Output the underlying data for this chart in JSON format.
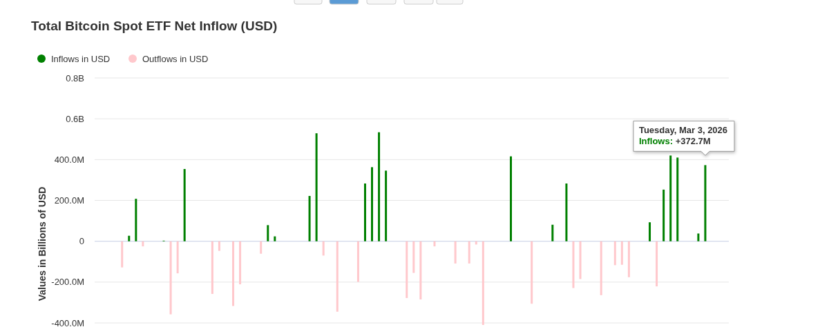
{
  "chart_data": {
    "type": "bar",
    "title": "Total Bitcoin Spot ETF Net Inflow (USD)",
    "ylabel": "Values in Billions of USD",
    "stacked": true,
    "categories": [
      null,
      null,
      null,
      null,
      null,
      null,
      null,
      null,
      null,
      null,
      null,
      null,
      null,
      null,
      null,
      null,
      null,
      null,
      null,
      null,
      null,
      null,
      null,
      null,
      null,
      null,
      null,
      null,
      null,
      null,
      null,
      null,
      null,
      null,
      null,
      null,
      null,
      null,
      null,
      null,
      null,
      null,
      null,
      null,
      null,
      null,
      null,
      null,
      null,
      null,
      null,
      null,
      null,
      null,
      null,
      null,
      null,
      null,
      null,
      null,
      null,
      null,
      null,
      null,
      null,
      null,
      null,
      null,
      null,
      null,
      null,
      null,
      null,
      null,
      null,
      null,
      null,
      null,
      null,
      null,
      null,
      null,
      null,
      null,
      null,
      null,
      null,
      null,
      null,
      null,
      null,
      null
    ],
    "series": [
      {
        "name": "Inflows in USD",
        "color": "#008000",
        "values": [
          null,
          null,
          null,
          null,
          null,
          27000000,
          208000000,
          null,
          null,
          null,
          3000000,
          null,
          null,
          354000000,
          null,
          null,
          null,
          null,
          null,
          null,
          null,
          null,
          null,
          null,
          null,
          79000000,
          24000000,
          null,
          null,
          null,
          null,
          222000000,
          529000000,
          null,
          null,
          null,
          null,
          null,
          null,
          283000000,
          363000000,
          534000000,
          346000000,
          null,
          null,
          null,
          null,
          null,
          null,
          null,
          null,
          null,
          null,
          null,
          null,
          null,
          null,
          null,
          null,
          null,
          416000000,
          null,
          null,
          null,
          null,
          null,
          81000000,
          null,
          283000000,
          null,
          null,
          null,
          null,
          null,
          null,
          null,
          null,
          null,
          null,
          null,
          93000000,
          null,
          253000000,
          420000000,
          410000000,
          null,
          null,
          38000000,
          373000000,
          null,
          null,
          null
        ]
      },
      {
        "name": "Outflows in USD",
        "color": "#ffc8cc",
        "values": [
          null,
          null,
          null,
          null,
          -128000000,
          null,
          null,
          -25000000,
          null,
          null,
          null,
          -358000000,
          -157000000,
          null,
          null,
          null,
          null,
          -258000000,
          -47000000,
          null,
          -317000000,
          -211000000,
          null,
          null,
          -61000000,
          null,
          null,
          null,
          null,
          null,
          null,
          null,
          null,
          -70000000,
          null,
          -345000000,
          null,
          null,
          -199000000,
          null,
          null,
          null,
          null,
          null,
          null,
          -278000000,
          -155000000,
          -285000000,
          null,
          -25000000,
          null,
          null,
          -109000000,
          null,
          -109000000,
          -16000000,
          -410000000,
          null,
          null,
          null,
          null,
          null,
          null,
          -306000000,
          null,
          null,
          null,
          null,
          null,
          -229000000,
          -185000000,
          null,
          null,
          -264000000,
          null,
          -117000000,
          -115000000,
          -176000000,
          null,
          null,
          null,
          -221000000,
          null,
          null,
          null,
          null,
          null,
          null,
          null,
          null,
          null,
          null
        ]
      }
    ],
    "ylim": [
      -420000000,
      800000000
    ],
    "yticks": [
      {
        "value": -400000000,
        "label": "-400.0M"
      },
      {
        "value": -200000000,
        "label": "-200.0M"
      },
      0,
      {
        "value": 200000000,
        "label": "200.0M"
      },
      {
        "value": 400000000,
        "label": "400.0M"
      },
      {
        "value": 600000000,
        "label": "0.6B"
      },
      {
        "value": 800000000,
        "label": "0.8B"
      }
    ],
    "grid": "y",
    "legend": "top left",
    "annotations": [
      "Tuesday, Mar 3, 2026\nInflows: +372.7M"
    ]
  }
}
